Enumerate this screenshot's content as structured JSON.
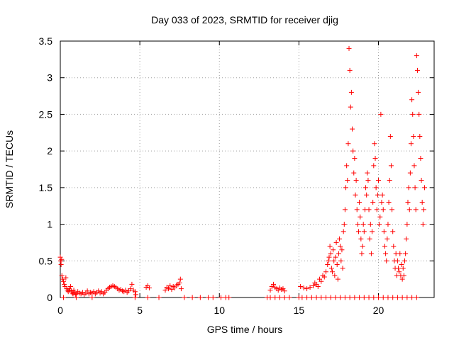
{
  "chart_data": {
    "type": "scatter",
    "title": "Day 033 of 2023, SRMTID for receiver djig",
    "xlabel": "GPS time / hours",
    "ylabel": "SRMTID / TECUs",
    "xlim": [
      0,
      23.5
    ],
    "ylim": [
      0,
      3.5
    ],
    "xticks": [
      0,
      5,
      10,
      15,
      20
    ],
    "xtick_labels": [
      "0",
      "5",
      "10",
      "15",
      "20"
    ],
    "yticks": [
      0,
      0.5,
      1,
      1.5,
      2,
      2.5,
      3,
      3.5
    ],
    "ytick_labels": [
      "0",
      "0.5",
      "1",
      "1.5",
      "2",
      "2.5",
      "3",
      "3.5"
    ],
    "grid": true,
    "marker": "plus",
    "series_color": "#ff0000",
    "series": [
      {
        "name": "SRMTID",
        "points": [
          [
            0.0,
            0.55
          ],
          [
            0.02,
            0.5
          ],
          [
            0.05,
            0.45
          ],
          [
            0.08,
            0.52
          ],
          [
            0.1,
            0.3
          ],
          [
            0.15,
            0.25
          ],
          [
            0.2,
            0.22
          ],
          [
            0.25,
            0.18
          ],
          [
            0.3,
            0.15
          ],
          [
            0.35,
            0.27
          ],
          [
            0.4,
            0.12
          ],
          [
            0.45,
            0.1
          ],
          [
            0.5,
            0.08
          ],
          [
            0.55,
            0.12
          ],
          [
            0.6,
            0.1
          ],
          [
            0.65,
            0.15
          ],
          [
            0.7,
            0.09
          ],
          [
            0.75,
            0.06
          ],
          [
            0.8,
            0.05
          ],
          [
            0.85,
            0.1
          ],
          [
            0.9,
            0.07
          ],
          [
            0.95,
            0.04
          ],
          [
            1.0,
            0.05
          ],
          [
            1.1,
            0.08
          ],
          [
            1.2,
            0.06
          ],
          [
            1.3,
            0.05
          ],
          [
            1.4,
            0.07
          ],
          [
            1.5,
            0.04
          ],
          [
            1.6,
            0.06
          ],
          [
            1.7,
            0.09
          ],
          [
            1.8,
            0.05
          ],
          [
            1.9,
            0.07
          ],
          [
            2.0,
            0.06
          ],
          [
            2.1,
            0.08
          ],
          [
            2.2,
            0.05
          ],
          [
            2.3,
            0.07
          ],
          [
            2.4,
            0.09
          ],
          [
            2.5,
            0.06
          ],
          [
            2.6,
            0.08
          ],
          [
            2.7,
            0.05
          ],
          [
            2.8,
            0.07
          ],
          [
            2.9,
            0.1
          ],
          [
            3.0,
            0.12
          ],
          [
            3.1,
            0.14
          ],
          [
            3.2,
            0.15
          ],
          [
            3.3,
            0.16
          ],
          [
            3.4,
            0.15
          ],
          [
            3.5,
            0.14
          ],
          [
            3.6,
            0.12
          ],
          [
            3.7,
            0.1
          ],
          [
            3.8,
            0.11
          ],
          [
            3.9,
            0.09
          ],
          [
            4.0,
            0.08
          ],
          [
            4.1,
            0.1
          ],
          [
            4.2,
            0.07
          ],
          [
            4.3,
            0.09
          ],
          [
            4.4,
            0.12
          ],
          [
            4.5,
            0.18
          ],
          [
            4.6,
            0.1
          ],
          [
            4.7,
            0.08
          ],
          [
            4.75,
            0.04
          ],
          [
            0.2,
            0.0
          ],
          [
            1.0,
            0.0
          ],
          [
            2.0,
            0.0
          ],
          [
            4.7,
            0.0
          ],
          [
            5.4,
            0.14
          ],
          [
            5.5,
            0.16
          ],
          [
            5.6,
            0.13
          ],
          [
            5.5,
            0.0
          ],
          [
            6.2,
            0.0
          ],
          [
            6.6,
            0.1
          ],
          [
            6.7,
            0.14
          ],
          [
            6.8,
            0.12
          ],
          [
            6.9,
            0.16
          ],
          [
            7.0,
            0.11
          ],
          [
            7.1,
            0.15
          ],
          [
            7.2,
            0.13
          ],
          [
            7.3,
            0.17
          ],
          [
            7.4,
            0.18
          ],
          [
            7.5,
            0.2
          ],
          [
            7.55,
            0.25
          ],
          [
            7.6,
            0.12
          ],
          [
            7.8,
            0.0
          ],
          [
            8.3,
            0.0
          ],
          [
            8.8,
            0.0
          ],
          [
            9.3,
            0.0
          ],
          [
            9.6,
            0.0
          ],
          [
            10.1,
            0.0
          ],
          [
            10.4,
            0.0
          ],
          [
            10.6,
            0.0
          ],
          [
            13.0,
            0.0
          ],
          [
            13.2,
            0.0
          ],
          [
            13.5,
            0.0
          ],
          [
            13.8,
            0.0
          ],
          [
            14.1,
            0.0
          ],
          [
            14.4,
            0.0
          ],
          [
            13.2,
            0.1
          ],
          [
            13.3,
            0.15
          ],
          [
            13.4,
            0.18
          ],
          [
            13.5,
            0.14
          ],
          [
            13.6,
            0.12
          ],
          [
            13.7,
            0.1
          ],
          [
            13.8,
            0.13
          ],
          [
            13.9,
            0.11
          ],
          [
            14.0,
            0.12
          ],
          [
            14.1,
            0.09
          ],
          [
            15.0,
            0.0
          ],
          [
            15.2,
            0.0
          ],
          [
            15.5,
            0.0
          ],
          [
            15.8,
            0.0
          ],
          [
            16.1,
            0.0
          ],
          [
            16.4,
            0.0
          ],
          [
            16.7,
            0.0
          ],
          [
            17.0,
            0.0
          ],
          [
            17.3,
            0.0
          ],
          [
            17.6,
            0.0
          ],
          [
            17.9,
            0.0
          ],
          [
            18.2,
            0.0
          ],
          [
            18.5,
            0.0
          ],
          [
            18.8,
            0.0
          ],
          [
            19.1,
            0.0
          ],
          [
            19.4,
            0.0
          ],
          [
            19.7,
            0.0
          ],
          [
            20.0,
            0.0
          ],
          [
            20.3,
            0.0
          ],
          [
            20.6,
            0.0
          ],
          [
            20.9,
            0.0
          ],
          [
            21.2,
            0.0
          ],
          [
            21.5,
            0.0
          ],
          [
            21.8,
            0.0
          ],
          [
            22.1,
            0.0
          ],
          [
            22.4,
            0.0
          ],
          [
            15.1,
            0.15
          ],
          [
            15.3,
            0.13
          ],
          [
            15.5,
            0.12
          ],
          [
            15.7,
            0.14
          ],
          [
            15.9,
            0.16
          ],
          [
            16.0,
            0.2
          ],
          [
            16.1,
            0.18
          ],
          [
            16.2,
            0.15
          ],
          [
            16.3,
            0.25
          ],
          [
            16.4,
            0.22
          ],
          [
            16.5,
            0.3
          ],
          [
            16.6,
            0.28
          ],
          [
            16.7,
            0.35
          ],
          [
            16.8,
            0.45
          ],
          [
            16.85,
            0.5
          ],
          [
            16.9,
            0.55
          ],
          [
            16.95,
            0.7
          ],
          [
            17.0,
            0.6
          ],
          [
            17.05,
            0.4
          ],
          [
            17.1,
            0.35
          ],
          [
            17.15,
            0.65
          ],
          [
            17.2,
            0.5
          ],
          [
            17.25,
            0.3
          ],
          [
            17.3,
            0.55
          ],
          [
            17.35,
            0.75
          ],
          [
            17.4,
            0.45
          ],
          [
            17.45,
            0.25
          ],
          [
            17.5,
            0.6
          ],
          [
            17.55,
            0.8
          ],
          [
            17.6,
            0.7
          ],
          [
            17.65,
            0.5
          ],
          [
            17.7,
            0.65
          ],
          [
            17.75,
            0.4
          ],
          [
            17.8,
            0.9
          ],
          [
            17.85,
            1.0
          ],
          [
            17.9,
            1.2
          ],
          [
            17.95,
            1.5
          ],
          [
            18.0,
            1.8
          ],
          [
            18.05,
            1.6
          ],
          [
            18.1,
            2.1
          ],
          [
            18.15,
            3.4
          ],
          [
            18.2,
            3.1
          ],
          [
            18.25,
            2.6
          ],
          [
            18.3,
            2.8
          ],
          [
            18.35,
            2.3
          ],
          [
            18.4,
            2.0
          ],
          [
            18.45,
            1.7
          ],
          [
            18.5,
            1.9
          ],
          [
            18.55,
            1.4
          ],
          [
            18.6,
            1.6
          ],
          [
            18.65,
            1.2
          ],
          [
            18.7,
            1.0
          ],
          [
            18.75,
            0.9
          ],
          [
            18.8,
            1.3
          ],
          [
            18.85,
            1.1
          ],
          [
            18.9,
            0.8
          ],
          [
            18.95,
            0.6
          ],
          [
            19.0,
            0.7
          ],
          [
            19.05,
            1.0
          ],
          [
            19.1,
            0.9
          ],
          [
            19.15,
            1.2
          ],
          [
            19.2,
            1.5
          ],
          [
            19.25,
            1.4
          ],
          [
            19.3,
            1.7
          ],
          [
            19.35,
            1.6
          ],
          [
            19.4,
            1.2
          ],
          [
            19.45,
            0.8
          ],
          [
            19.5,
            1.0
          ],
          [
            19.55,
            0.6
          ],
          [
            19.6,
            0.9
          ],
          [
            19.65,
            1.3
          ],
          [
            19.7,
            1.8
          ],
          [
            19.75,
            2.1
          ],
          [
            19.8,
            1.9
          ],
          [
            19.85,
            1.5
          ],
          [
            19.9,
            1.2
          ],
          [
            19.95,
            1.4
          ],
          [
            20.0,
            1.6
          ],
          [
            20.05,
            1.0
          ],
          [
            20.1,
            1.1
          ],
          [
            20.15,
            2.5
          ],
          [
            20.2,
            1.3
          ],
          [
            20.25,
            1.4
          ],
          [
            20.3,
            1.2
          ],
          [
            20.35,
            0.9
          ],
          [
            20.4,
            0.7
          ],
          [
            20.45,
            0.6
          ],
          [
            20.5,
            0.5
          ],
          [
            20.55,
            0.8
          ],
          [
            20.6,
            1.0
          ],
          [
            20.65,
            1.3
          ],
          [
            20.7,
            1.6
          ],
          [
            20.75,
            2.2
          ],
          [
            20.8,
            1.8
          ],
          [
            20.85,
            1.2
          ],
          [
            20.9,
            0.9
          ],
          [
            20.95,
            0.7
          ],
          [
            21.0,
            0.5
          ],
          [
            21.05,
            0.4
          ],
          [
            21.1,
            0.6
          ],
          [
            21.15,
            0.3
          ],
          [
            21.2,
            0.5
          ],
          [
            21.25,
            0.4
          ],
          [
            21.3,
            0.35
          ],
          [
            21.35,
            0.6
          ],
          [
            21.4,
            0.3
          ],
          [
            21.45,
            0.45
          ],
          [
            21.5,
            0.25
          ],
          [
            21.55,
            0.4
          ],
          [
            21.6,
            0.3
          ],
          [
            21.65,
            0.5
          ],
          [
            21.7,
            0.6
          ],
          [
            21.75,
            0.8
          ],
          [
            21.8,
            1.0
          ],
          [
            21.85,
            1.3
          ],
          [
            21.9,
            1.5
          ],
          [
            21.95,
            1.2
          ],
          [
            22.0,
            1.7
          ],
          [
            22.05,
            2.1
          ],
          [
            22.1,
            2.7
          ],
          [
            22.15,
            2.5
          ],
          [
            22.2,
            2.2
          ],
          [
            22.25,
            1.8
          ],
          [
            22.3,
            1.5
          ],
          [
            22.35,
            1.2
          ],
          [
            22.4,
            3.3
          ],
          [
            22.45,
            3.1
          ],
          [
            22.5,
            2.8
          ],
          [
            22.55,
            2.5
          ],
          [
            22.6,
            2.2
          ],
          [
            22.65,
            1.9
          ],
          [
            22.7,
            1.6
          ],
          [
            22.75,
            1.3
          ],
          [
            22.8,
            1.0
          ],
          [
            22.85,
            1.2
          ],
          [
            22.9,
            1.5
          ]
        ]
      }
    ]
  }
}
